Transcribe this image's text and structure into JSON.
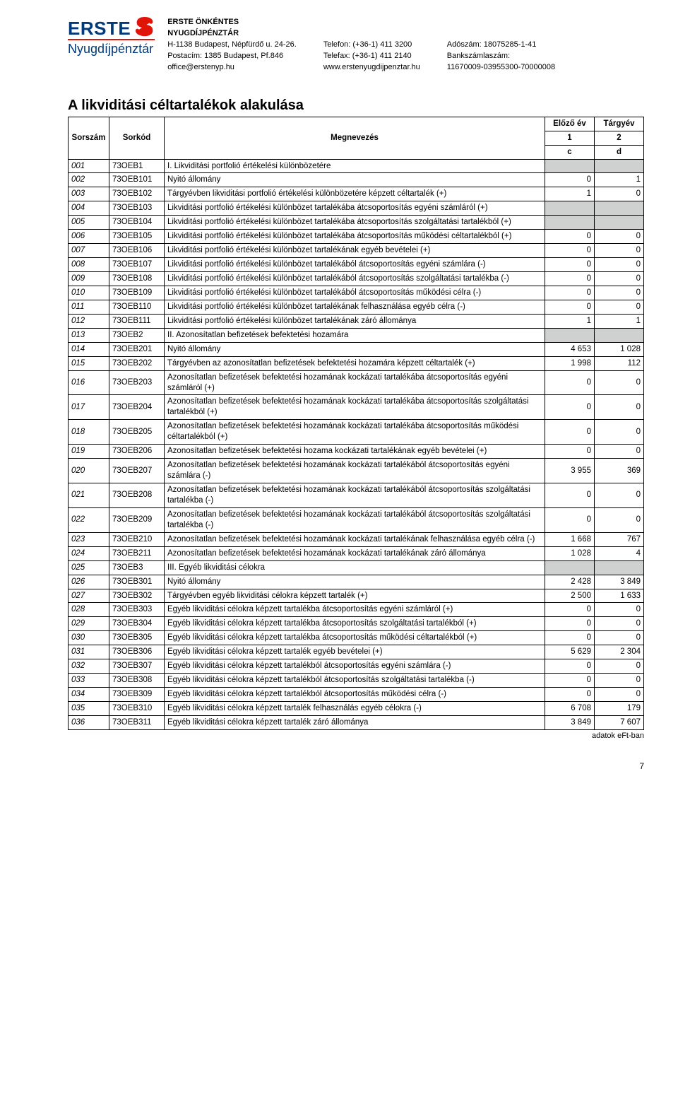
{
  "header": {
    "logo_text": "ERSTE",
    "logo_sub": "Nyugdíjpénztár",
    "col1_bold1": "ERSTE ÖNKÉNTES",
    "col1_bold2": "NYUGDÍJPÉNZTÁR",
    "col1_line1": "H-1138 Budapest, Népfürdő u. 24-26.",
    "col1_line2": "Postacím: 1385 Budapest, Pf.846",
    "col1_line3": "office@erstenyp.hu",
    "col2_line1": "Telefon: (+36-1) 411 3200",
    "col2_line2": "Telefax: (+36-1) 411 2140",
    "col2_line3": "www.erstenyugdijpenztar.hu",
    "col3_line1": "Adószám: 18075285-1-41",
    "col3_line2": "Bankszámlaszám:",
    "col3_line3": "11670009-03955300-70000008"
  },
  "title": "A likviditási céltartalékok alakulása",
  "table": {
    "head_sorszam": "Sorszám",
    "head_sorkod": "Sorkód",
    "head_megnevezes": "Megnevezés",
    "head_prev": "Előző év",
    "head_curr": "Tárgyév",
    "head_1": "1",
    "head_2": "2",
    "head_c": "c",
    "head_d": "d",
    "rows": [
      {
        "sor": "001",
        "kod": "73OEB1",
        "meg": "I. Likviditási portfolió értékelési különbözetére",
        "prev": "",
        "curr": "",
        "gray": true
      },
      {
        "sor": "002",
        "kod": "73OEB101",
        "meg": "Nyitó állomány",
        "prev": "0",
        "curr": "1"
      },
      {
        "sor": "003",
        "kod": "73OEB102",
        "meg": "Tárgyévben likviditási portfolió értékelési különbözetére képzett céltartalék (+)",
        "prev": "1",
        "curr": "0"
      },
      {
        "sor": "004",
        "kod": "73OEB103",
        "meg": "Likviditási portfolió értékelési különbözet tartalékába átcsoportosítás egyéni számláról (+)",
        "prev": "",
        "curr": "",
        "gray": true
      },
      {
        "sor": "005",
        "kod": "73OEB104",
        "meg": "Likviditási portfolió értékelési különbözet tartalékába átcsoportosítás szolgáltatási tartalékból (+)",
        "prev": "",
        "curr": "",
        "gray": true
      },
      {
        "sor": "006",
        "kod": "73OEB105",
        "meg": "Likviditási portfolió értékelési különbözet tartalékába átcsoportosítás működési céltartalékból (+)",
        "prev": "0",
        "curr": "0"
      },
      {
        "sor": "007",
        "kod": "73OEB106",
        "meg": "Likviditási portfolió értékelési különbözet tartalékának egyéb bevételei (+)",
        "prev": "0",
        "curr": "0"
      },
      {
        "sor": "008",
        "kod": "73OEB107",
        "meg": "Likviditási portfolió értékelési különbözet tartalékából átcsoportosítás egyéni számlára (-)",
        "prev": "0",
        "curr": "0"
      },
      {
        "sor": "009",
        "kod": "73OEB108",
        "meg": "Likviditási portfolió értékelési különbözet tartalékából átcsoportosítás szolgáltatási tartalékba (-)",
        "prev": "0",
        "curr": "0"
      },
      {
        "sor": "010",
        "kod": "73OEB109",
        "meg": "Likviditási portfolió értékelési különbözet tartalékából átcsoportosítás működési célra (-)",
        "prev": "0",
        "curr": "0"
      },
      {
        "sor": "011",
        "kod": "73OEB110",
        "meg": "Likviditási portfolió értékelési különbözet tartalékának felhasználása egyéb célra (-)",
        "prev": "0",
        "curr": "0"
      },
      {
        "sor": "012",
        "kod": "73OEB111",
        "meg": "Likviditási portfolió értékelési különbözet tartalékának záró állománya",
        "prev": "1",
        "curr": "1"
      },
      {
        "sor": "013",
        "kod": "73OEB2",
        "meg": "II. Azonosítatlan befizetések befektetési hozamára",
        "prev": "",
        "curr": "",
        "gray": true
      },
      {
        "sor": "014",
        "kod": "73OEB201",
        "meg": "Nyitó állomány",
        "prev": "4 653",
        "curr": "1 028"
      },
      {
        "sor": "015",
        "kod": "73OEB202",
        "meg": "Tárgyévben az azonosítatlan befizetések befektetési hozamára képzett céltartalék (+)",
        "prev": "1 998",
        "curr": "112"
      },
      {
        "sor": "016",
        "kod": "73OEB203",
        "meg": "Azonosítatlan befizetések befektetési hozamának kockázati tartalékába átcsoportosítás egyéni számláról (+)",
        "prev": "0",
        "curr": "0"
      },
      {
        "sor": "017",
        "kod": "73OEB204",
        "meg": "Azonosítatlan befizetések befektetési hozamának kockázati tartalékába átcsoportosítás szolgáltatási tartalékból (+)",
        "prev": "0",
        "curr": "0"
      },
      {
        "sor": "018",
        "kod": "73OEB205",
        "meg": "Azonosítatlan befizetések befektetési hozamának kockázati tartalékába átcsoportosítás működési céltartalékból (+)",
        "prev": "0",
        "curr": "0"
      },
      {
        "sor": "019",
        "kod": "73OEB206",
        "meg": "Azonosítatlan befizetések befektetési hozama kockázati tartalékának egyéb bevételei (+)",
        "prev": "0",
        "curr": "0"
      },
      {
        "sor": "020",
        "kod": "73OEB207",
        "meg": "Azonosítatlan befizetések befektetési hozamának kockázati tartalékából átcsoportosítás egyéni számlára (-)",
        "prev": "3 955",
        "curr": "369"
      },
      {
        "sor": "021",
        "kod": "73OEB208",
        "meg": "Azonosítatlan befizetések befektetési hozamának kockázati tartalékából átcsoportosítás szolgáltatási tartalékba (-)",
        "prev": "0",
        "curr": "0"
      },
      {
        "sor": "022",
        "kod": "73OEB209",
        "meg": "Azonosítatlan befizetések befektetési hozamának kockázati tartalékából átcsoportosítás szolgáltatási tartalékba (-)",
        "prev": "0",
        "curr": "0"
      },
      {
        "sor": "023",
        "kod": "73OEB210",
        "meg": "Azonosítatlan befizetések befektetési hozamának kockázati tartalékának felhasználása egyéb célra (-)",
        "prev": "1 668",
        "curr": "767"
      },
      {
        "sor": "024",
        "kod": "73OEB211",
        "meg": "Azonosítatlan befizetések befektetési hozamának kockázati tartalékának záró állománya",
        "prev": "1 028",
        "curr": "4"
      },
      {
        "sor": "025",
        "kod": "73OEB3",
        "meg": "III. Egyéb likviditási célokra",
        "prev": "",
        "curr": "",
        "gray": true
      },
      {
        "sor": "026",
        "kod": "73OEB301",
        "meg": "Nyitó állomány",
        "prev": "2 428",
        "curr": "3 849"
      },
      {
        "sor": "027",
        "kod": "73OEB302",
        "meg": "Tárgyévben egyéb likviditási célokra képzett tartalék (+)",
        "prev": "2 500",
        "curr": "1 633"
      },
      {
        "sor": "028",
        "kod": "73OEB303",
        "meg": "Egyéb likviditási célokra képzett tartalékba átcsoportosítás egyéni számláról (+)",
        "prev": "0",
        "curr": "0"
      },
      {
        "sor": "029",
        "kod": "73OEB304",
        "meg": "Egyéb likviditási célokra képzett tartalékba átcsoportosítás szolgáltatási tartalékból (+)",
        "prev": "0",
        "curr": "0"
      },
      {
        "sor": "030",
        "kod": "73OEB305",
        "meg": "Egyéb likviditási célokra képzett tartalékba átcsoportosítás működési céltartalékból (+)",
        "prev": "0",
        "curr": "0"
      },
      {
        "sor": "031",
        "kod": "73OEB306",
        "meg": "Egyéb likviditási célokra képzett tartalék egyéb bevételei (+)",
        "prev": "5 629",
        "curr": "2 304"
      },
      {
        "sor": "032",
        "kod": "73OEB307",
        "meg": "Egyéb likviditási célokra képzett tartalékból átcsoportosítás egyéni számlára (-)",
        "prev": "0",
        "curr": "0"
      },
      {
        "sor": "033",
        "kod": "73OEB308",
        "meg": "Egyéb likviditási célokra képzett tartalékból átcsoportosítás szolgáltatási tartalékba (-)",
        "prev": "0",
        "curr": "0"
      },
      {
        "sor": "034",
        "kod": "73OEB309",
        "meg": "Egyéb likviditási célokra képzett tartalékból átcsoportosítás működési célra (-)",
        "prev": "0",
        "curr": "0"
      },
      {
        "sor": "035",
        "kod": "73OEB310",
        "meg": "Egyéb likviditási célokra képzett tartalék felhasználás egyéb célokra (-)",
        "prev": "6 708",
        "curr": "179"
      },
      {
        "sor": "036",
        "kod": "73OEB311",
        "meg": "Egyéb likviditási célokra képzett tartalék záró állománya",
        "prev": "3 849",
        "curr": "7 607"
      }
    ],
    "footer_note": "adatok eFt-ban"
  },
  "page_num": "7",
  "colors": {
    "erste_blue": "#003a7a",
    "erste_red": "#e11408",
    "gray_fill": "#cfd0d0"
  }
}
